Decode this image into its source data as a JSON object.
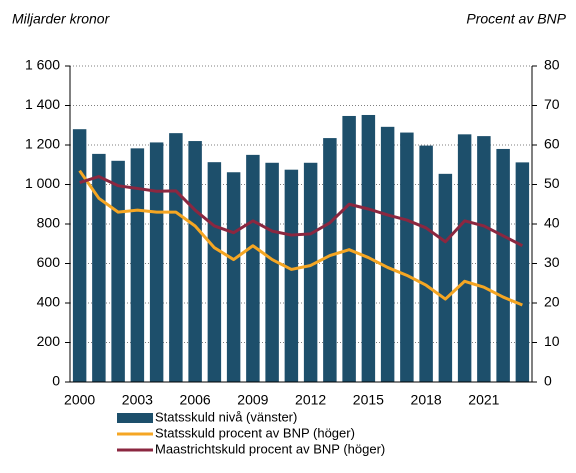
{
  "chart_data": {
    "type": "combo",
    "y_label": "Miljarder kronor",
    "y2_label": "Procent av BNP",
    "categories": [
      "2000",
      null,
      null,
      "2003",
      null,
      null,
      "2006",
      null,
      null,
      "2009",
      null,
      null,
      "2012",
      null,
      null,
      "2015",
      null,
      null,
      "2018",
      null,
      null,
      "2021",
      null,
      null
    ],
    "series": [
      {
        "name": "Statsskuld nivå (vänster)",
        "type": "bar",
        "color": "#1d4f6b",
        "values": [
          1280,
          1155,
          1120,
          1183,
          1213,
          1260,
          1220,
          1113,
          1062,
          1150,
          1110,
          1075,
          1110,
          1235,
          1347,
          1352,
          1292,
          1263,
          1197,
          1054,
          1254,
          1245,
          1180,
          1112
        ]
      },
      {
        "name": "Statsskuld procent av BNP (höger)",
        "type": "line",
        "axis": "y2",
        "color": "#f5a623",
        "values": [
          53.5,
          46.5,
          43,
          43.5,
          43,
          43,
          39.5,
          34,
          31,
          34.5,
          31,
          28.5,
          29.5,
          32,
          33.5,
          31.5,
          29,
          27,
          24.5,
          21,
          25.5,
          24,
          21.5,
          19.5
        ]
      },
      {
        "name": "Maastrichtskuld procent av BNP (höger)",
        "type": "line",
        "axis": "y2",
        "color": "#8b2740",
        "values": [
          50.5,
          52,
          49.7,
          49,
          48.3,
          48.4,
          43.5,
          39.5,
          37.8,
          40.8,
          38.2,
          37.2,
          37.5,
          40.3,
          45,
          43.8,
          42.3,
          41,
          39,
          35.5,
          40.8,
          39.5,
          37,
          34.5
        ]
      }
    ],
    "ylim": [
      0,
      1600
    ],
    "yticks": [
      0,
      200,
      400,
      600,
      800,
      {
        "value": 1000,
        "label": "1 000"
      },
      {
        "value": 1200,
        "label": "1 200"
      },
      {
        "value": 1400,
        "label": "1 400"
      },
      {
        "value": 1600,
        "label": "1 600"
      }
    ],
    "y2lim": [
      0,
      80
    ],
    "y2ticks": [
      0,
      10,
      20,
      30,
      40,
      50,
      60,
      70,
      80
    ],
    "grid": true,
    "legend": "bottom"
  }
}
